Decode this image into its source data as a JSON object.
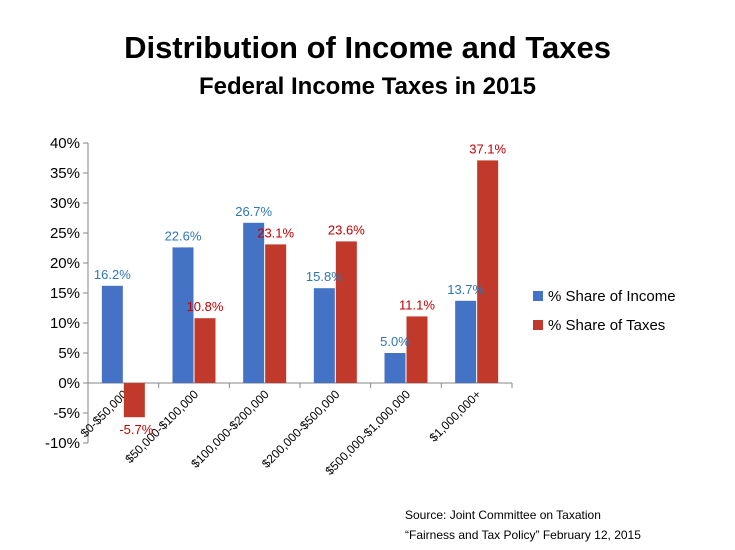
{
  "chart_data": {
    "type": "bar",
    "title": "Distribution of Income and Taxes",
    "subtitle": "Federal Income Taxes in 2015",
    "categories": [
      "$0-$50,000",
      "$50,000-$100,000",
      "$100,000-$200,000",
      "$200,000-$500,000",
      "$500,000-$1,000,000",
      "$1,000,000+"
    ],
    "series": [
      {
        "name": "% Share of Income",
        "values": [
          16.2,
          22.6,
          26.7,
          15.8,
          5.0,
          13.7
        ],
        "labels": [
          "16.2%",
          "22.6%",
          "26.7%",
          "15.8%",
          "5.0%",
          "13.7%"
        ],
        "color": "#4472C4",
        "label_color": "#2E75B6"
      },
      {
        "name": "% Share of Taxes",
        "values": [
          -5.7,
          10.8,
          23.1,
          23.6,
          11.1,
          37.1
        ],
        "labels": [
          "-5.7%",
          "10.8%",
          "23.1%",
          "23.6%",
          "11.1%",
          "37.1%"
        ],
        "color": "#C0392B",
        "label_color": "#C00000"
      }
    ],
    "ylim": [
      -10,
      40
    ],
    "yticks": [
      -10,
      -5,
      0,
      5,
      10,
      15,
      20,
      25,
      30,
      35,
      40
    ],
    "ytick_labels": [
      "-10%",
      "-5%",
      "0%",
      "5%",
      "10%",
      "15%",
      "20%",
      "25%",
      "30%",
      "35%",
      "40%"
    ],
    "grid": false,
    "legend_position": "right"
  },
  "source": {
    "line1": "Source: Joint Committee on Taxation",
    "line2": "“Fairness and Tax Policy” February 12, 2015"
  }
}
